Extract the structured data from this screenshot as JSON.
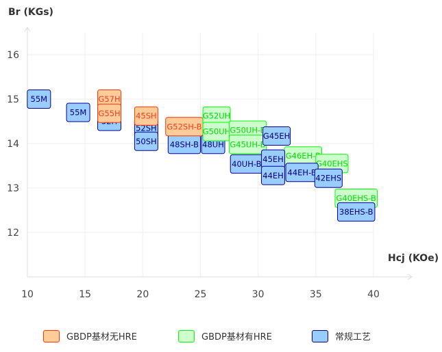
{
  "chart_data": {
    "type": "scatter",
    "xlabel": "Hcj (KOe)",
    "ylabel": "Br (KGs)",
    "xlim": [
      10,
      40
    ],
    "ylim": [
      11,
      16.5
    ],
    "xticks": [
      10,
      15,
      20,
      25,
      30,
      35,
      40
    ],
    "yticks": [
      12,
      13,
      14,
      15,
      16
    ],
    "grid": true,
    "legend_position": "bottom",
    "series": [
      {
        "key": "orange",
        "name": "GBDP基材无HRE",
        "fill": "#ffcc99",
        "stroke": "#ff3300",
        "text": "#f03c1e"
      },
      {
        "key": "green",
        "name": "GBDP基材有HRE",
        "fill": "#ccffcc",
        "stroke": "#00ff00",
        "text": "#00dd00"
      },
      {
        "key": "blue",
        "name": "常规工艺",
        "fill": "#99ccff",
        "stroke": "#000099",
        "text": "#000080"
      }
    ],
    "points": [
      {
        "label": "55M",
        "series": "blue",
        "x": 11.0,
        "y": 15.0
      },
      {
        "label": "55M",
        "series": "blue",
        "x": 14.4,
        "y": 14.7
      },
      {
        "label": "52H",
        "series": "blue",
        "x": 17.1,
        "y": 14.5
      },
      {
        "label": "52SH",
        "series": "blue",
        "x": 20.3,
        "y": 14.35
      },
      {
        "label": "50SH",
        "series": "blue",
        "x": 20.3,
        "y": 14.05
      },
      {
        "label": "48SH-B",
        "series": "blue",
        "x": 23.6,
        "y": 13.98
      },
      {
        "label": "48UH",
        "series": "blue",
        "x": 26.1,
        "y": 13.98
      },
      {
        "label": "40UH-B",
        "series": "blue",
        "x": 29.0,
        "y": 13.54
      },
      {
        "label": "G57H",
        "series": "orange",
        "x": 17.1,
        "y": 15.0
      },
      {
        "label": "G55H",
        "series": "orange",
        "x": 17.1,
        "y": 14.68
      },
      {
        "label": "45SH",
        "series": "orange",
        "x": 20.3,
        "y": 14.62
      },
      {
        "label": "G52SH-B",
        "series": "orange",
        "x": 23.6,
        "y": 14.38
      },
      {
        "label": "G52UH",
        "series": "green",
        "x": 26.4,
        "y": 14.62
      },
      {
        "label": "G50UH",
        "series": "green",
        "x": 26.4,
        "y": 14.27
      },
      {
        "label": "G50UH-B",
        "series": "green",
        "x": 29.1,
        "y": 14.3
      },
      {
        "label": "G45UH-B",
        "series": "green",
        "x": 29.1,
        "y": 13.98
      },
      {
        "label": "G46EH-B",
        "series": "green",
        "x": 33.9,
        "y": 13.72
      },
      {
        "label": "G40EHS",
        "series": "green",
        "x": 36.4,
        "y": 13.55
      },
      {
        "label": "G40EHS-B",
        "series": "green",
        "x": 38.5,
        "y": 12.77
      },
      {
        "label": "G45EH",
        "series": "blue",
        "x": 31.6,
        "y": 14.17
      },
      {
        "label": "45EH",
        "series": "blue",
        "x": 31.3,
        "y": 13.65
      },
      {
        "label": "44EH",
        "series": "blue",
        "x": 31.3,
        "y": 13.28
      },
      {
        "label": "44EH-B",
        "series": "blue",
        "x": 33.8,
        "y": 13.35
      },
      {
        "label": "42EHS",
        "series": "blue",
        "x": 36.1,
        "y": 13.22
      },
      {
        "label": "38EHS-B",
        "series": "blue",
        "x": 38.5,
        "y": 12.46
      }
    ]
  }
}
